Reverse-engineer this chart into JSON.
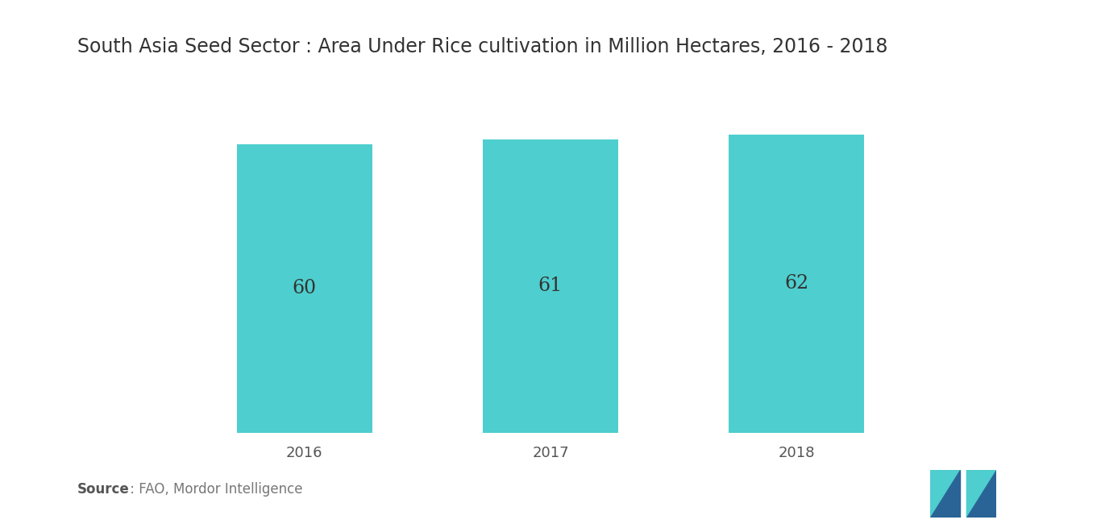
{
  "title": "South Asia Seed Sector : Area Under Rice cultivation in Million Hectares, 2016 - 2018",
  "categories": [
    "2016",
    "2017",
    "2018"
  ],
  "values": [
    60,
    61,
    62
  ],
  "bar_color": "#4ECECE",
  "bar_width": 0.55,
  "label_fontsize": 17,
  "title_fontsize": 17,
  "tick_fontsize": 13,
  "source_bold": "Source",
  "source_rest": " : FAO, Mordor Intelligence",
  "background_color": "#ffffff",
  "ylim": [
    0,
    68
  ],
  "value_color": "#333333"
}
